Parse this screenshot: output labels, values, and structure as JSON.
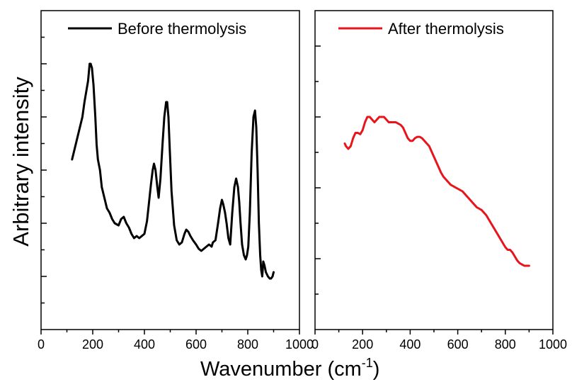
{
  "chart_data": {
    "type": "line",
    "xlabel": "Wavenumber (cm",
    "xlabel_superscript": "-1",
    "xlabel_suffix": ")",
    "ylabel": "Arbitrary intensity",
    "panels": [
      {
        "xlim": [
          0,
          1000
        ],
        "xticks": [
          0,
          200,
          400,
          600,
          800,
          1000
        ],
        "xtick_labels": [
          "0",
          "200",
          "400",
          "600",
          "800",
          "1000"
        ],
        "y_tick_labels_shown": false,
        "grid": false,
        "legend_placement": "top-left",
        "series": [
          {
            "name": "Before thermolysis",
            "color": "#000000",
            "x": [
              120,
              140,
              150,
              160,
              168,
              175,
              182,
              188,
              192,
              197,
              203,
              210,
              215,
              220,
              228,
              235,
              245,
              255,
              265,
              275,
              285,
              300,
              310,
              320,
              330,
              340,
              350,
              360,
              370,
              380,
              390,
              400,
              410,
              418,
              425,
              432,
              437,
              443,
              450,
              455,
              462,
              470,
              477,
              484,
              488,
              493,
              498,
              505,
              515,
              525,
              535,
              545,
              555,
              562,
              570,
              578,
              588,
              600,
              610,
              620,
              630,
              640,
              650,
              660,
              665,
              675,
              685,
              693,
              700,
              705,
              712,
              718,
              725,
              732,
              740,
              748,
              755,
              762,
              767,
              772,
              778,
              785,
              792,
              797,
              802,
              808,
              815,
              822,
              828,
              833,
              838,
              843,
              848,
              852,
              856,
              860,
              865,
              870,
              878,
              885,
              890,
              896,
              900
            ],
            "y": [
              0.35,
              0.45,
              0.5,
              0.55,
              0.62,
              0.67,
              0.72,
              0.8,
              0.8,
              0.78,
              0.7,
              0.55,
              0.42,
              0.35,
              0.3,
              0.22,
              0.17,
              0.12,
              0.1,
              0.07,
              0.05,
              0.04,
              0.07,
              0.08,
              0.05,
              0.03,
              0.0,
              -0.02,
              -0.01,
              -0.02,
              -0.01,
              0.0,
              0.06,
              0.15,
              0.23,
              0.3,
              0.33,
              0.3,
              0.22,
              0.17,
              0.26,
              0.42,
              0.55,
              0.62,
              0.62,
              0.55,
              0.4,
              0.2,
              0.04,
              -0.03,
              -0.05,
              -0.04,
              0.0,
              0.02,
              0.01,
              -0.01,
              -0.03,
              -0.05,
              -0.07,
              -0.08,
              -0.07,
              -0.06,
              -0.05,
              -0.06,
              -0.04,
              -0.03,
              0.05,
              0.12,
              0.16,
              0.14,
              0.1,
              0.05,
              -0.02,
              -0.05,
              0.1,
              0.22,
              0.26,
              0.22,
              0.15,
              0.05,
              -0.05,
              -0.1,
              -0.12,
              -0.1,
              -0.06,
              0.1,
              0.38,
              0.55,
              0.58,
              0.5,
              0.3,
              0.05,
              -0.1,
              -0.17,
              -0.2,
              -0.13,
              -0.15,
              -0.18,
              -0.2,
              -0.21,
              -0.21,
              -0.2,
              -0.18
            ]
          }
        ]
      },
      {
        "xlim": [
          0,
          1000
        ],
        "xticks": [
          0,
          200,
          400,
          600,
          800,
          1000
        ],
        "xtick_labels": [
          "0",
          "200",
          "400",
          "600",
          "800",
          "1000"
        ],
        "y_tick_labels_shown": false,
        "grid": false,
        "legend_placement": "top-left",
        "series": [
          {
            "name": "After thermolysis",
            "color": "#e8141b",
            "x": [
              125,
              130,
              140,
              150,
              160,
              170,
              180,
              190,
              200,
              210,
              220,
              230,
              240,
              250,
              260,
              270,
              280,
              290,
              300,
              310,
              320,
              330,
              340,
              350,
              360,
              370,
              380,
              390,
              400,
              410,
              420,
              430,
              440,
              450,
              460,
              470,
              480,
              490,
              500,
              510,
              520,
              530,
              540,
              550,
              560,
              570,
              580,
              590,
              600,
              620,
              640,
              660,
              680,
              700,
              720,
              740,
              760,
              780,
              800,
              810,
              820,
              830,
              840,
              850,
              860,
              870,
              880,
              890,
              900
            ],
            "y": [
              0.5,
              0.49,
              0.48,
              0.49,
              0.52,
              0.54,
              0.54,
              0.535,
              0.55,
              0.58,
              0.6,
              0.6,
              0.59,
              0.58,
              0.59,
              0.6,
              0.6,
              0.6,
              0.59,
              0.58,
              0.58,
              0.58,
              0.58,
              0.575,
              0.57,
              0.56,
              0.54,
              0.52,
              0.51,
              0.51,
              0.52,
              0.525,
              0.525,
              0.52,
              0.51,
              0.5,
              0.49,
              0.47,
              0.45,
              0.43,
              0.41,
              0.39,
              0.375,
              0.365,
              0.355,
              0.345,
              0.34,
              0.335,
              0.33,
              0.32,
              0.3,
              0.28,
              0.26,
              0.25,
              0.23,
              0.2,
              0.17,
              0.14,
              0.11,
              0.1,
              0.1,
              0.09,
              0.075,
              0.06,
              0.05,
              0.045,
              0.04,
              0.04,
              0.04
            ]
          }
        ]
      }
    ]
  }
}
